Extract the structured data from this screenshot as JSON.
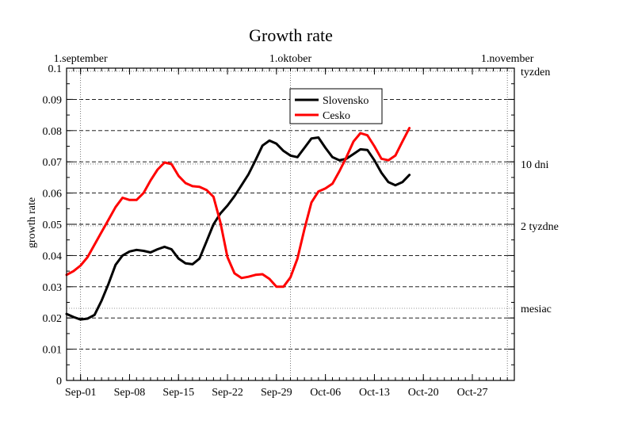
{
  "chart_data": {
    "type": "line",
    "title": "Growth rate",
    "ylabel": "growth rate",
    "xlabel": "",
    "x_start": "2020-08-30",
    "x_end": "2020-11-02",
    "ylim": [
      0,
      0.1
    ],
    "yticks": [
      0,
      0.01,
      0.02,
      0.03,
      0.04,
      0.05,
      0.06,
      0.07,
      0.08,
      0.09,
      0.1
    ],
    "ytick_labels": [
      "0",
      "0.01",
      "0.02",
      "0.03",
      "0.04",
      "0.05",
      "0.06",
      "0.07",
      "0.08",
      "0.09",
      "0.1"
    ],
    "xticks": [
      {
        "date": "2020-09-01",
        "label": "Sep-01"
      },
      {
        "date": "2020-09-08",
        "label": "Sep-08"
      },
      {
        "date": "2020-09-15",
        "label": "Sep-15"
      },
      {
        "date": "2020-09-22",
        "label": "Sep-22"
      },
      {
        "date": "2020-09-29",
        "label": "Sep-29"
      },
      {
        "date": "2020-10-06",
        "label": "Oct-06"
      },
      {
        "date": "2020-10-13",
        "label": "Oct-13"
      },
      {
        "date": "2020-10-20",
        "label": "Oct-20"
      },
      {
        "date": "2020-10-27",
        "label": "Oct-27"
      }
    ],
    "top_labels": [
      {
        "date": "2020-09-01",
        "label": "1.september"
      },
      {
        "date": "2020-10-01",
        "label": "1.oktober"
      },
      {
        "date": "2020-11-01",
        "label": "1.november"
      }
    ],
    "right_labels": [
      {
        "y": 0.099,
        "label": "tyzden"
      },
      {
        "y": 0.0693,
        "label": "10 dni"
      },
      {
        "y": 0.0495,
        "label": "2 tyzdne"
      },
      {
        "y": 0.0231,
        "label": "mesiac"
      }
    ],
    "grid": true,
    "legend_position": "top-center",
    "series": [
      {
        "name": "Slovensko",
        "color": "#000000",
        "points": [
          [
            "2020-08-30",
            0.0213
          ],
          [
            "2020-08-31",
            0.0203
          ],
          [
            "2020-09-01",
            0.0195
          ],
          [
            "2020-09-02",
            0.0198
          ],
          [
            "2020-09-03",
            0.021
          ],
          [
            "2020-09-04",
            0.0255
          ],
          [
            "2020-09-05",
            0.031
          ],
          [
            "2020-09-06",
            0.037
          ],
          [
            "2020-09-07",
            0.04
          ],
          [
            "2020-09-08",
            0.0413
          ],
          [
            "2020-09-09",
            0.0418
          ],
          [
            "2020-09-10",
            0.0415
          ],
          [
            "2020-09-11",
            0.041
          ],
          [
            "2020-09-12",
            0.042
          ],
          [
            "2020-09-13",
            0.0428
          ],
          [
            "2020-09-14",
            0.042
          ],
          [
            "2020-09-15",
            0.039
          ],
          [
            "2020-09-16",
            0.0375
          ],
          [
            "2020-09-17",
            0.0372
          ],
          [
            "2020-09-18",
            0.039
          ],
          [
            "2020-09-19",
            0.0445
          ],
          [
            "2020-09-20",
            0.05
          ],
          [
            "2020-09-21",
            0.0535
          ],
          [
            "2020-09-22",
            0.056
          ],
          [
            "2020-09-23",
            0.059
          ],
          [
            "2020-09-24",
            0.0625
          ],
          [
            "2020-09-25",
            0.066
          ],
          [
            "2020-09-26",
            0.0705
          ],
          [
            "2020-09-27",
            0.0752
          ],
          [
            "2020-09-28",
            0.0768
          ],
          [
            "2020-09-29",
            0.0758
          ],
          [
            "2020-09-30",
            0.0735
          ],
          [
            "2020-10-01",
            0.072
          ],
          [
            "2020-10-02",
            0.0715
          ],
          [
            "2020-10-03",
            0.0745
          ],
          [
            "2020-10-04",
            0.0775
          ],
          [
            "2020-10-05",
            0.0778
          ],
          [
            "2020-10-06",
            0.0745
          ],
          [
            "2020-10-07",
            0.0715
          ],
          [
            "2020-10-08",
            0.0705
          ],
          [
            "2020-10-09",
            0.071
          ],
          [
            "2020-10-10",
            0.0725
          ],
          [
            "2020-10-11",
            0.074
          ],
          [
            "2020-10-12",
            0.0738
          ],
          [
            "2020-10-13",
            0.0705
          ],
          [
            "2020-10-14",
            0.0665
          ],
          [
            "2020-10-15",
            0.0635
          ],
          [
            "2020-10-16",
            0.0625
          ],
          [
            "2020-10-17",
            0.0635
          ],
          [
            "2020-10-18",
            0.0658
          ]
        ]
      },
      {
        "name": "Cesko",
        "color": "#ff0000",
        "points": [
          [
            "2020-08-30",
            0.0338
          ],
          [
            "2020-08-31",
            0.035
          ],
          [
            "2020-09-01",
            0.0368
          ],
          [
            "2020-09-02",
            0.0395
          ],
          [
            "2020-09-03",
            0.0435
          ],
          [
            "2020-09-04",
            0.0475
          ],
          [
            "2020-09-05",
            0.0515
          ],
          [
            "2020-09-06",
            0.0555
          ],
          [
            "2020-09-07",
            0.0585
          ],
          [
            "2020-09-08",
            0.0578
          ],
          [
            "2020-09-09",
            0.0578
          ],
          [
            "2020-09-10",
            0.06
          ],
          [
            "2020-09-11",
            0.064
          ],
          [
            "2020-09-12",
            0.0675
          ],
          [
            "2020-09-13",
            0.0698
          ],
          [
            "2020-09-14",
            0.0693
          ],
          [
            "2020-09-15",
            0.0655
          ],
          [
            "2020-09-16",
            0.0632
          ],
          [
            "2020-09-17",
            0.0622
          ],
          [
            "2020-09-18",
            0.062
          ],
          [
            "2020-09-19",
            0.061
          ],
          [
            "2020-09-20",
            0.0588
          ],
          [
            "2020-09-21",
            0.0505
          ],
          [
            "2020-09-22",
            0.0395
          ],
          [
            "2020-09-23",
            0.0343
          ],
          [
            "2020-09-24",
            0.0328
          ],
          [
            "2020-09-25",
            0.0332
          ],
          [
            "2020-09-26",
            0.0338
          ],
          [
            "2020-09-27",
            0.034
          ],
          [
            "2020-09-28",
            0.0325
          ],
          [
            "2020-09-29",
            0.03
          ],
          [
            "2020-09-30",
            0.03
          ],
          [
            "2020-10-01",
            0.033
          ],
          [
            "2020-10-02",
            0.039
          ],
          [
            "2020-10-03",
            0.0485
          ],
          [
            "2020-10-04",
            0.057
          ],
          [
            "2020-10-05",
            0.0605
          ],
          [
            "2020-10-06",
            0.0615
          ],
          [
            "2020-10-07",
            0.063
          ],
          [
            "2020-10-08",
            0.067
          ],
          [
            "2020-10-09",
            0.0715
          ],
          [
            "2020-10-10",
            0.0765
          ],
          [
            "2020-10-11",
            0.0792
          ],
          [
            "2020-10-12",
            0.0785
          ],
          [
            "2020-10-13",
            0.075
          ],
          [
            "2020-10-14",
            0.071
          ],
          [
            "2020-10-15",
            0.0705
          ],
          [
            "2020-10-16",
            0.072
          ],
          [
            "2020-10-17",
            0.0765
          ],
          [
            "2020-10-18",
            0.0808
          ]
        ]
      }
    ]
  }
}
